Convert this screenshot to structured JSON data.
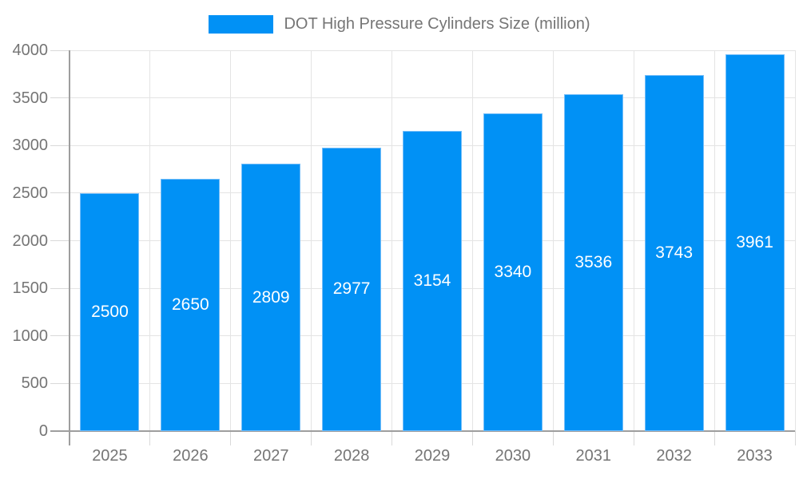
{
  "chart_data": {
    "type": "bar",
    "title": "DOT High Pressure Cylinders Size (million)",
    "categories": [
      "2025",
      "2026",
      "2027",
      "2028",
      "2029",
      "2030",
      "2031",
      "2032",
      "2033"
    ],
    "values": [
      2500,
      2650,
      2809,
      2977,
      3154,
      3340,
      3536,
      3743,
      3961
    ],
    "xlabel": "",
    "ylabel": "",
    "ylim": [
      0,
      4000
    ],
    "yticks": [
      0,
      500,
      1000,
      1500,
      2000,
      2500,
      3000,
      3500,
      4000
    ],
    "grid": "on",
    "legend_position": "top-center",
    "bar_color": "#0191f5",
    "bar_label_color": "#ffffff",
    "axis_text_color": "#757575",
    "gridline_color": "#e4e4e4",
    "axis_line_color": "#9e9e9e"
  }
}
